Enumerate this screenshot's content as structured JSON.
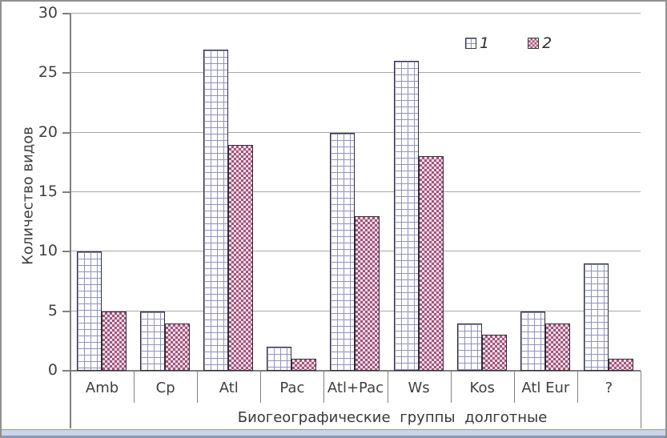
{
  "chart_data": {
    "type": "bar",
    "title": "",
    "categories": [
      "Amb",
      "Cp",
      "Atl",
      "Pac",
      "Atl+Pac",
      "Ws",
      "Kos",
      "Atl Eur",
      "?"
    ],
    "series": [
      {
        "name": "1",
        "values": [
          10,
          5,
          27,
          2,
          20,
          26,
          4,
          5,
          9
        ]
      },
      {
        "name": "2",
        "values": [
          5,
          4,
          19,
          1,
          13,
          18,
          3,
          4,
          1
        ]
      }
    ],
    "xlabel": "Биогеографические  группы  долготные",
    "ylabel": "Количество видов",
    "ylim": [
      0,
      30
    ],
    "yticks": [
      0,
      5,
      10,
      15,
      20,
      25,
      30
    ],
    "grid": "horizontal",
    "legend": {
      "position": "top-right",
      "entries": [
        "1",
        "2"
      ]
    },
    "colors": {
      "series1_grid_line": "#9191c2",
      "series1_fill": "#ffffff",
      "series2_check_dark": "#a25378",
      "series2_check_light": "#f2dde8",
      "bar_outline": "#2e2e38",
      "gridline": "#a9a9a9",
      "axis": "#7f7f7f",
      "text": "#3f3f3f",
      "bottom_strip": "#ccd5e5"
    }
  }
}
